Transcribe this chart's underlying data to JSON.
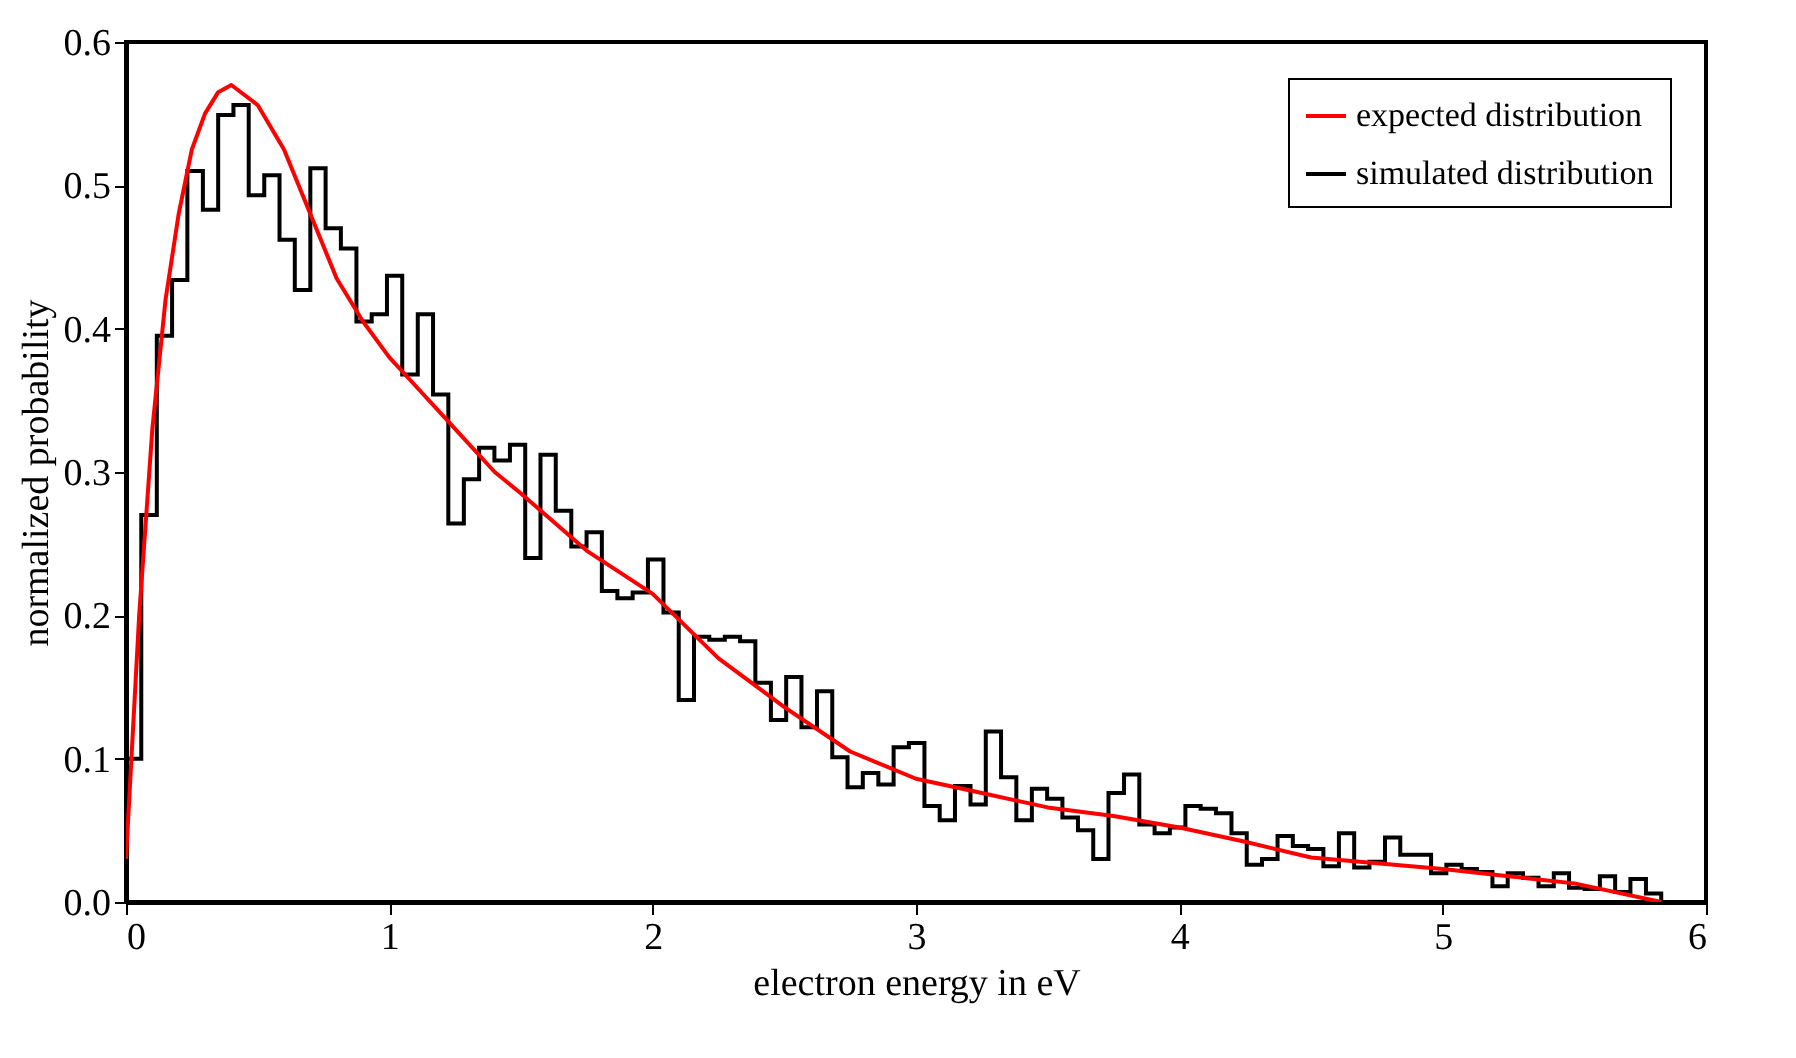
{
  "chart_data": {
    "type": "histogram",
    "xlabel": "electron energy in eV",
    "ylabel": "normalized probability",
    "xlim": [
      0,
      6
    ],
    "ylim": [
      0,
      0.6
    ],
    "xticks": [
      0,
      1,
      2,
      3,
      4,
      5,
      6
    ],
    "yticks": [
      {
        "value": 0,
        "label": "0.0"
      },
      {
        "value": 0.1,
        "label": "0.1"
      },
      {
        "value": 0.2,
        "label": "0.2"
      },
      {
        "value": 0.3,
        "label": "0.3"
      },
      {
        "value": 0.4,
        "label": "0.4"
      },
      {
        "value": 0.5,
        "label": "0.5"
      },
      {
        "value": 0.6,
        "label": "0.6"
      }
    ],
    "legend": "top right",
    "grid": false,
    "series": [
      {
        "name": "expected distribution",
        "type": "line",
        "color": "#ff0000",
        "x": [
          0,
          0.05,
          0.1,
          0.15,
          0.2,
          0.25,
          0.3,
          0.35,
          0.4,
          0.5,
          0.6,
          0.7,
          0.8,
          0.9,
          1.0,
          1.1,
          1.2,
          1.3,
          1.4,
          1.5,
          1.75,
          2.0,
          2.25,
          2.5,
          2.75,
          3.0,
          3.25,
          3.5,
          3.75,
          4.0,
          4.25,
          4.5,
          4.75,
          5.0,
          5.25,
          5.5,
          5.83
        ],
        "values": [
          0.03,
          0.2,
          0.33,
          0.42,
          0.48,
          0.525,
          0.55,
          0.565,
          0.57,
          0.556,
          0.525,
          0.48,
          0.435,
          0.405,
          0.38,
          0.36,
          0.34,
          0.32,
          0.3,
          0.285,
          0.245,
          0.215,
          0.17,
          0.136,
          0.105,
          0.086,
          0.076,
          0.066,
          0.06,
          0.052,
          0.042,
          0.031,
          0.027,
          0.023,
          0.018,
          0.013,
          0.0
        ]
      },
      {
        "name": "simulated distribution",
        "color": "#000000",
        "bins": [
          0,
          0.058,
          0.117,
          0.175,
          0.233,
          0.292,
          0.35,
          0.408,
          0.466,
          0.525,
          0.583,
          0.641,
          0.7,
          0.758,
          0.816,
          0.875,
          0.933,
          0.991,
          1.049,
          1.108,
          1.166,
          1.224,
          1.283,
          1.341,
          1.399,
          1.458,
          1.516,
          1.574,
          1.632,
          1.691,
          1.749,
          1.807,
          1.866,
          1.924,
          1.982,
          2.041,
          2.099,
          2.157,
          2.215,
          2.274,
          2.332,
          2.39,
          2.449,
          2.507,
          2.565,
          2.624,
          2.682,
          2.74,
          2.798,
          2.857,
          2.915,
          2.973,
          3.032,
          3.09,
          3.148,
          3.207,
          3.265,
          3.323,
          3.381,
          3.44,
          3.498,
          3.556,
          3.615,
          3.673,
          3.731,
          3.79,
          3.848,
          3.906,
          3.964,
          4.023,
          4.081,
          4.139,
          4.198,
          4.256,
          4.314,
          4.373,
          4.431,
          4.489,
          4.547,
          4.606,
          4.664,
          4.722,
          4.781,
          4.839,
          4.897,
          4.956,
          5.014,
          5.072,
          5.13,
          5.189,
          5.247,
          5.305,
          5.364,
          5.422,
          5.48,
          5.539,
          5.597,
          5.655,
          5.713,
          5.772,
          5.83
        ],
        "values": [
          0.1,
          0.27,
          0.395,
          0.434,
          0.51,
          0.483,
          0.549,
          0.556,
          0.493,
          0.507,
          0.462,
          0.427,
          0.512,
          0.47,
          0.456,
          0.405,
          0.41,
          0.437,
          0.368,
          0.41,
          0.354,
          0.264,
          0.295,
          0.317,
          0.308,
          0.319,
          0.24,
          0.312,
          0.273,
          0.248,
          0.258,
          0.217,
          0.212,
          0.216,
          0.239,
          0.202,
          0.141,
          0.185,
          0.183,
          0.185,
          0.182,
          0.153,
          0.127,
          0.157,
          0.122,
          0.147,
          0.101,
          0.08,
          0.09,
          0.082,
          0.108,
          0.111,
          0.067,
          0.057,
          0.081,
          0.068,
          0.119,
          0.087,
          0.057,
          0.079,
          0.072,
          0.059,
          0.05,
          0.03,
          0.076,
          0.089,
          0.054,
          0.048,
          0.052,
          0.067,
          0.065,
          0.062,
          0.048,
          0.026,
          0.03,
          0.046,
          0.039,
          0.037,
          0.025,
          0.048,
          0.024,
          0.028,
          0.045,
          0.033,
          0.033,
          0.02,
          0.026,
          0.023,
          0.021,
          0.011,
          0.02,
          0.017,
          0.011,
          0.02,
          0.01,
          0.009,
          0.018,
          0.007,
          0.016,
          0.006
        ]
      }
    ]
  }
}
